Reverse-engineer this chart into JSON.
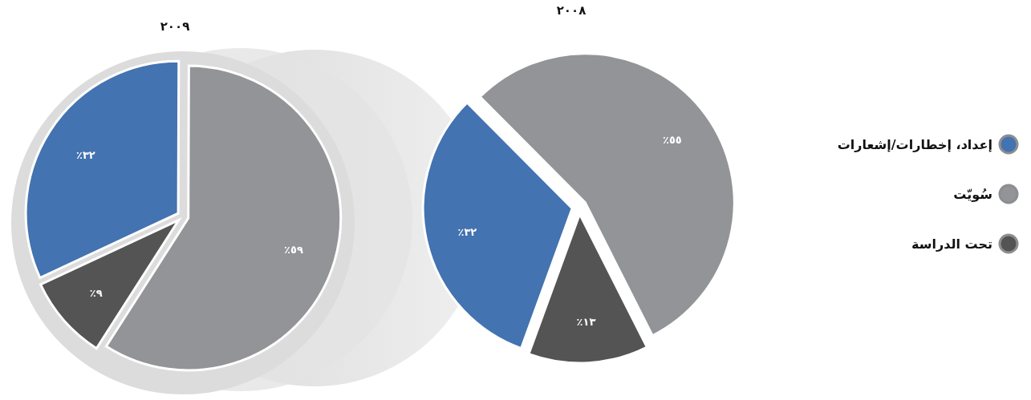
{
  "chart_data": [
    {
      "type": "pie",
      "title": "٢٠٠٩",
      "categories": [
        null,
        null,
        null
      ],
      "values": [
        32,
        59,
        9
      ],
      "colors": [
        "#4373b0",
        "#939497",
        "#555455"
      ],
      "value_labels": [
        "٣٢٪",
        "٥٩٪",
        "٩٪"
      ]
    },
    {
      "type": "pie",
      "title": "٢٠٠٨",
      "categories": [
        "إعداد، إخطارات/إشعارات",
        "سُويّت",
        "تحت الدراسة"
      ],
      "values": [
        32,
        55,
        13
      ],
      "colors": [
        "#4373b0",
        "#939497",
        "#555455"
      ],
      "value_labels": [
        "٣٢٪",
        "٥٥٪",
        "١٣٪"
      ],
      "legend": "right"
    }
  ]
}
